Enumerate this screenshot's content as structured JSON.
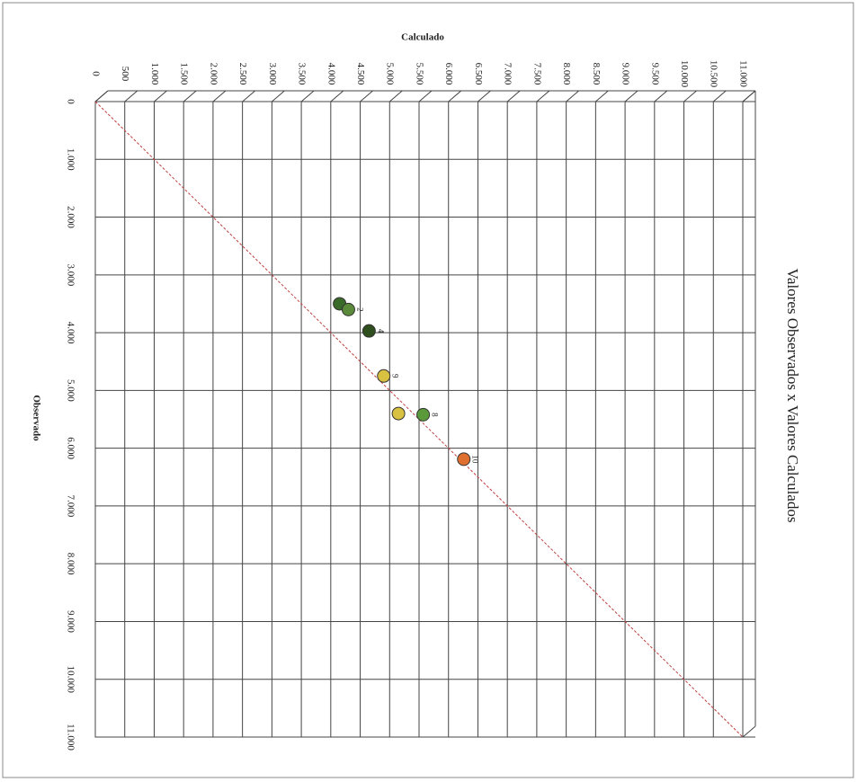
{
  "chart_data": {
    "type": "scatter",
    "title": "Valores Observados x Valores Calculados",
    "x_label": "Observado",
    "y_label": "Calculado",
    "x": [
      3500,
      3600,
      3970,
      4750,
      5400,
      5420,
      6190
    ],
    "values": [
      4150,
      4300,
      4650,
      4900,
      5150,
      5570,
      6260
    ],
    "labels": [
      null,
      "2",
      "4",
      "9",
      null,
      "8",
      "10"
    ],
    "colors": [
      "#3a6a2a",
      "#5a8a3a",
      "#2f4f1f",
      "#d8c040",
      "#d8c040",
      "#5a9a3a",
      "#e07030"
    ],
    "xlim": [
      0,
      11000
    ],
    "ylim": [
      0,
      11000
    ],
    "xticks": [
      0,
      {
        "value": 1000,
        "label": "1.000"
      },
      {
        "value": 2000,
        "label": "2.000"
      },
      {
        "value": 3000,
        "label": "3.000"
      },
      {
        "value": 4000,
        "label": "4.000"
      },
      {
        "value": 5000,
        "label": "5.000"
      },
      {
        "value": 6000,
        "label": "6.000"
      },
      {
        "value": 7000,
        "label": "7.000"
      },
      {
        "value": 8000,
        "label": "8.000"
      },
      {
        "value": 9000,
        "label": "9.000"
      },
      {
        "value": 10000,
        "label": "10.000"
      },
      {
        "value": 11000,
        "label": "11.000"
      }
    ],
    "yticks": [
      0,
      500,
      {
        "value": 1000,
        "label": "1.000"
      },
      {
        "value": 1500,
        "label": "1.500"
      },
      {
        "value": 2000,
        "label": "2.000"
      },
      {
        "value": 2500,
        "label": "2.500"
      },
      {
        "value": 3000,
        "label": "3.000"
      },
      {
        "value": 3500,
        "label": "3.500"
      },
      {
        "value": 4000,
        "label": "4.000"
      },
      {
        "value": 4500,
        "label": "4.500"
      },
      {
        "value": 5000,
        "label": "5.000"
      },
      {
        "value": 5500,
        "label": "5.500"
      },
      {
        "value": 6000,
        "label": "6.000"
      },
      {
        "value": 6500,
        "label": "6.500"
      },
      {
        "value": 7000,
        "label": "7.000"
      },
      {
        "value": 7500,
        "label": "7.500"
      },
      {
        "value": 8000,
        "label": "8.000"
      },
      {
        "value": 8500,
        "label": "8.500"
      },
      {
        "value": 9000,
        "label": "9.000"
      },
      {
        "value": 9500,
        "label": "9.500"
      },
      {
        "value": 10000,
        "label": "10.000"
      },
      {
        "value": 10500,
        "label": "10.500"
      },
      {
        "value": 11000,
        "label": "11.000"
      }
    ],
    "grid": true,
    "diagonal_color": "#c04040"
  }
}
